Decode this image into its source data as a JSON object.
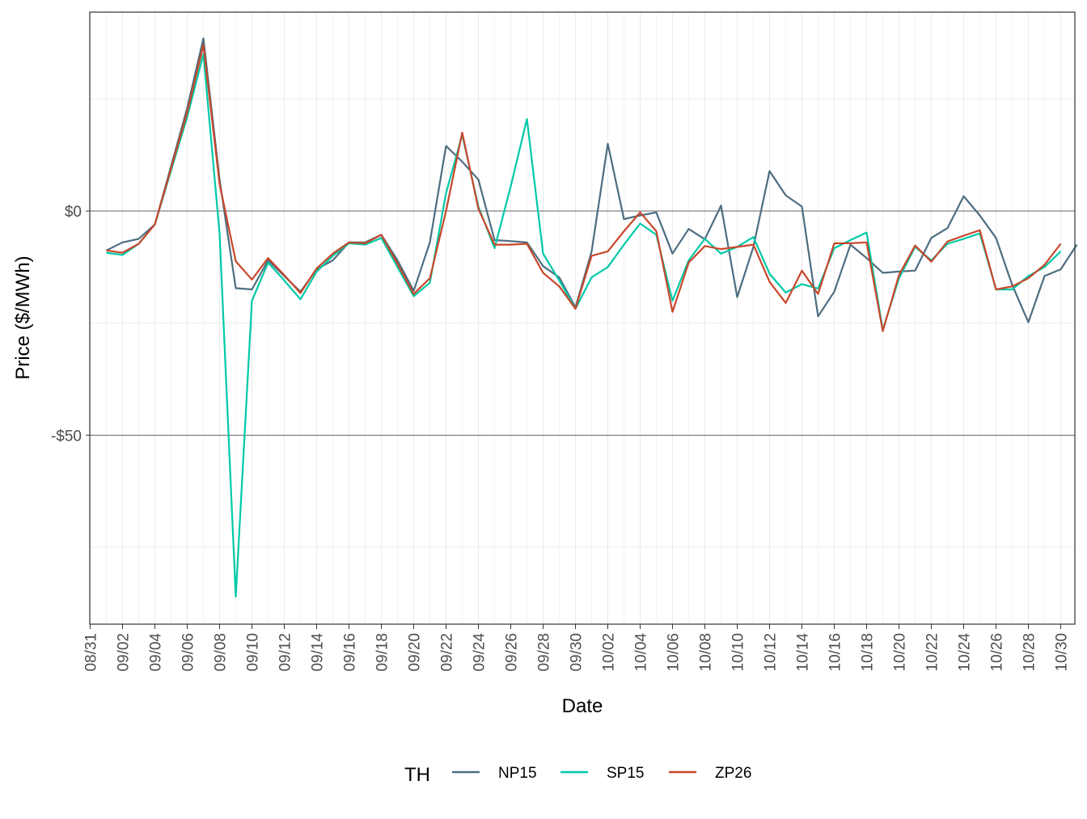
{
  "chart_data": {
    "type": "line",
    "title": "",
    "xlabel": "Date",
    "ylabel": "Price ($/MWh)",
    "ylim": [
      -91,
      44
    ],
    "x_tick_labels": [
      "08/31",
      "09/02",
      "09/04",
      "09/06",
      "09/08",
      "09/10",
      "09/12",
      "09/14",
      "09/16",
      "09/18",
      "09/20",
      "09/22",
      "09/24",
      "09/26",
      "09/28",
      "09/30",
      "10/02",
      "10/04",
      "10/06",
      "10/08",
      "10/10",
      "10/12",
      "10/14",
      "10/16",
      "10/18",
      "10/20",
      "10/22",
      "10/24",
      "10/26",
      "10/28",
      "10/30"
    ],
    "y_ticks": [
      {
        "value": 0,
        "label": "$0"
      },
      {
        "value": -50,
        "label": "-$50"
      }
    ],
    "y_minor_gridlines": [
      25,
      -25,
      -75
    ],
    "legend": {
      "title": "TH",
      "position": "bottom"
    },
    "series": [
      {
        "name": "NP15",
        "color": "#4e6d80",
        "points": [
          [
            1,
            -8.8
          ],
          [
            2,
            -7
          ],
          [
            3,
            -6.2
          ],
          [
            4,
            -3
          ],
          [
            5,
            10
          ],
          [
            6,
            23
          ],
          [
            7,
            38.5
          ],
          [
            8,
            7
          ],
          [
            9,
            -17.2
          ],
          [
            10,
            -17.5
          ],
          [
            11,
            -11
          ],
          [
            12,
            -14.5
          ],
          [
            13,
            -18
          ],
          [
            14,
            -13
          ],
          [
            15,
            -11
          ],
          [
            16,
            -7
          ],
          [
            17,
            -7
          ],
          [
            18,
            -5.3
          ],
          [
            19,
            -11
          ],
          [
            20,
            -17.8
          ],
          [
            21,
            -7
          ],
          [
            22,
            14.5
          ],
          [
            23,
            11
          ],
          [
            24,
            7
          ],
          [
            25,
            -6.5
          ],
          [
            26,
            -6.7
          ],
          [
            27,
            -7
          ],
          [
            28,
            -12.3
          ],
          [
            29,
            -14.8
          ],
          [
            30,
            -21.5
          ],
          [
            31,
            -9
          ],
          [
            32,
            15
          ],
          [
            33,
            -1.8
          ],
          [
            34,
            -1
          ],
          [
            35,
            -0.3
          ],
          [
            36,
            -9.5
          ],
          [
            37,
            -4
          ],
          [
            38,
            -6.3
          ],
          [
            39,
            1.2
          ],
          [
            40,
            -19.2
          ],
          [
            41,
            -8
          ],
          [
            42,
            8.9
          ],
          [
            43,
            3.5
          ],
          [
            44,
            1
          ],
          [
            45,
            -23.5
          ],
          [
            46,
            -18
          ],
          [
            47,
            -7.5
          ],
          [
            48,
            -10.5
          ],
          [
            49,
            -13.8
          ],
          [
            50,
            -13.5
          ],
          [
            51,
            -13.3
          ],
          [
            52,
            -6
          ],
          [
            53,
            -3.8
          ],
          [
            54,
            3.3
          ],
          [
            55,
            -1
          ],
          [
            56,
            -6
          ],
          [
            57,
            -16.5
          ],
          [
            58,
            -24.8
          ],
          [
            59,
            -14.5
          ],
          [
            60,
            -13
          ],
          [
            61,
            -7.5
          ]
        ]
      },
      {
        "name": "SP15",
        "color": "#00c9a7",
        "points": [
          [
            1,
            -9.3
          ],
          [
            2,
            -9.8
          ],
          [
            3,
            -7.3
          ],
          [
            4,
            -3
          ],
          [
            5,
            9
          ],
          [
            6,
            21
          ],
          [
            7,
            35
          ],
          [
            8,
            -5
          ],
          [
            9,
            -86
          ],
          [
            10,
            -20
          ],
          [
            11,
            -11.5
          ],
          [
            12,
            -15.5
          ],
          [
            13,
            -19.7
          ],
          [
            14,
            -13.5
          ],
          [
            15,
            -10
          ],
          [
            16,
            -7.2
          ],
          [
            17,
            -7.5
          ],
          [
            18,
            -6
          ],
          [
            19,
            -12.5
          ],
          [
            20,
            -19
          ],
          [
            21,
            -16
          ],
          [
            22,
            4
          ],
          [
            23,
            17
          ],
          [
            24,
            1
          ],
          [
            25,
            -8.3
          ],
          [
            26,
            5.5
          ],
          [
            27,
            20.5
          ],
          [
            28,
            -9.5
          ],
          [
            29,
            -15.5
          ],
          [
            30,
            -21.8
          ],
          [
            31,
            -14.8
          ],
          [
            32,
            -12.5
          ],
          [
            33,
            -7.5
          ],
          [
            34,
            -2.8
          ],
          [
            35,
            -5.3
          ],
          [
            36,
            -20
          ],
          [
            37,
            -11
          ],
          [
            38,
            -6.2
          ],
          [
            39,
            -9.5
          ],
          [
            40,
            -8
          ],
          [
            41,
            -5.8
          ],
          [
            42,
            -14
          ],
          [
            43,
            -18.2
          ],
          [
            44,
            -16.3
          ],
          [
            45,
            -17.3
          ],
          [
            46,
            -8.3
          ],
          [
            47,
            -6.5
          ],
          [
            48,
            -4.8
          ],
          [
            49,
            -26.5
          ],
          [
            50,
            -15
          ],
          [
            51,
            -8
          ],
          [
            52,
            -11
          ],
          [
            53,
            -7.3
          ],
          [
            54,
            -6.2
          ],
          [
            55,
            -5
          ],
          [
            56,
            -17.5
          ],
          [
            57,
            -17.5
          ],
          [
            58,
            -14.5
          ],
          [
            59,
            -12.5
          ],
          [
            60,
            -9
          ]
        ]
      },
      {
        "name": "ZP26",
        "color": "#c8472b",
        "points": [
          [
            1,
            -8.8
          ],
          [
            2,
            -9.3
          ],
          [
            3,
            -7.3
          ],
          [
            4,
            -3
          ],
          [
            5,
            9.5
          ],
          [
            6,
            22
          ],
          [
            7,
            37
          ],
          [
            8,
            6
          ],
          [
            9,
            -11.2
          ],
          [
            10,
            -15.3
          ],
          [
            11,
            -10.5
          ],
          [
            12,
            -14.3
          ],
          [
            13,
            -18.3
          ],
          [
            14,
            -12.8
          ],
          [
            15,
            -9.5
          ],
          [
            16,
            -7
          ],
          [
            17,
            -7.2
          ],
          [
            18,
            -5.3
          ],
          [
            19,
            -11.8
          ],
          [
            20,
            -18.5
          ],
          [
            21,
            -15
          ],
          [
            22,
            0
          ],
          [
            23,
            17.5
          ],
          [
            24,
            0.5
          ],
          [
            25,
            -7.5
          ],
          [
            26,
            -7.5
          ],
          [
            27,
            -7.3
          ],
          [
            28,
            -13.8
          ],
          [
            29,
            -16.8
          ],
          [
            30,
            -21.8
          ],
          [
            31,
            -10
          ],
          [
            32,
            -9
          ],
          [
            33,
            -4.5
          ],
          [
            34,
            -0.3
          ],
          [
            35,
            -4.5
          ],
          [
            36,
            -22.5
          ],
          [
            37,
            -11.5
          ],
          [
            38,
            -7.8
          ],
          [
            39,
            -8.5
          ],
          [
            40,
            -8
          ],
          [
            41,
            -7.5
          ],
          [
            42,
            -15.8
          ],
          [
            43,
            -20.5
          ],
          [
            44,
            -13.3
          ],
          [
            45,
            -18.5
          ],
          [
            46,
            -7.2
          ],
          [
            47,
            -7.2
          ],
          [
            48,
            -7
          ],
          [
            49,
            -26.8
          ],
          [
            50,
            -14.3
          ],
          [
            51,
            -7.7
          ],
          [
            52,
            -11.3
          ],
          [
            53,
            -6.8
          ],
          [
            54,
            -5.5
          ],
          [
            55,
            -4.3
          ],
          [
            56,
            -17.5
          ],
          [
            57,
            -16.8
          ],
          [
            58,
            -15
          ],
          [
            59,
            -12
          ],
          [
            60,
            -7.3
          ]
        ]
      }
    ]
  }
}
